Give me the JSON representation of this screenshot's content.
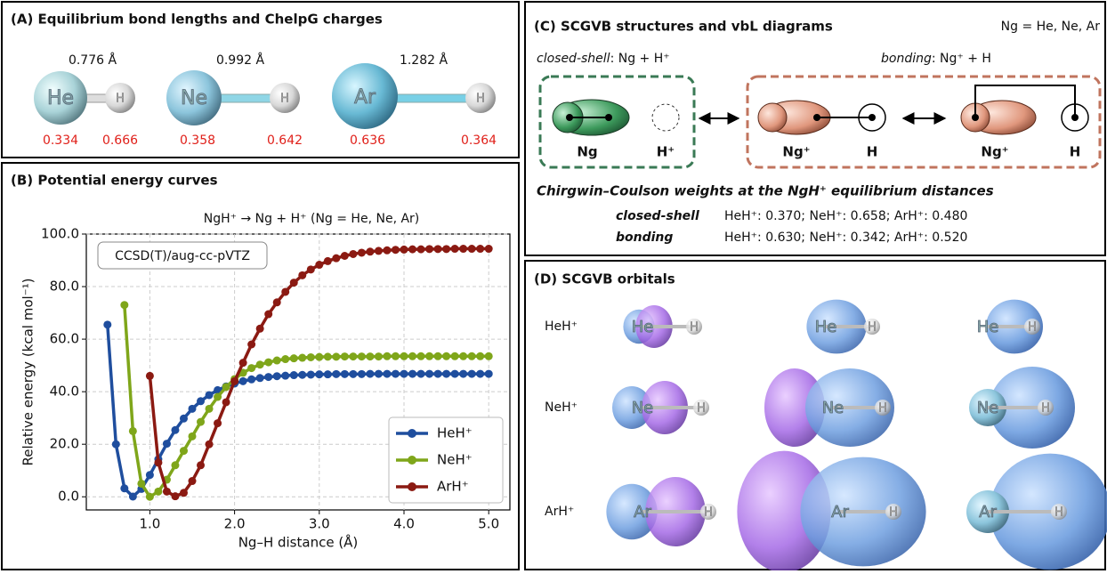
{
  "panel_a": {
    "title": "(A) Equilibrium bond lengths and ChelpG charges",
    "molecules": [
      {
        "atom": "He",
        "h": "H",
        "bond": "0.776 Å",
        "q_ng": "0.334",
        "q_h": "0.666"
      },
      {
        "atom": "Ne",
        "h": "H",
        "bond": "0.992 Å",
        "q_ng": "0.358",
        "q_h": "0.642"
      },
      {
        "atom": "Ar",
        "h": "H",
        "bond": "1.282 Å",
        "q_ng": "0.636",
        "q_h": "0.364"
      }
    ]
  },
  "chart_data": {
    "type": "line",
    "title": "(B) Potential energy curves",
    "subtitle": "NgH⁺ → Ng + H⁺ (Ng = He, Ne, Ar)",
    "annotation": "CCSD(T)/aug-cc-pVTZ",
    "x_label": "Ng–H distance (Å)",
    "y_label": "Relative energy (kcal mol⁻¹)",
    "x": [
      0.5,
      0.6,
      0.7,
      0.8,
      0.9,
      1.0,
      1.1,
      1.2,
      1.3,
      1.4,
      1.5,
      1.6,
      1.7,
      1.8,
      1.9,
      2.0,
      2.1,
      2.2,
      2.3,
      2.4,
      2.5,
      2.6,
      2.7,
      2.8,
      2.9,
      3.0,
      3.1,
      3.2,
      3.3,
      3.4,
      3.5,
      3.6,
      3.7,
      3.8,
      3.9,
      4.0,
      4.1,
      4.2,
      4.3,
      4.4,
      4.5,
      4.6,
      4.7,
      4.8,
      4.9,
      5.0
    ],
    "series": [
      {
        "name": "HeH⁺",
        "color": "#1f4e9e",
        "values": [
          65.5,
          20.0,
          3.2,
          0.1,
          3.0,
          8.3,
          14.3,
          20.2,
          25.4,
          29.8,
          33.5,
          36.4,
          38.7,
          40.6,
          42.0,
          43.1,
          44.0,
          44.7,
          45.2,
          45.6,
          45.9,
          46.1,
          46.3,
          46.4,
          46.5,
          46.6,
          46.6,
          46.7,
          46.7,
          46.7,
          46.7,
          46.8,
          46.8,
          46.8,
          46.8,
          46.8,
          46.8,
          46.8,
          46.8,
          46.8,
          46.8,
          46.8,
          46.8,
          46.8,
          46.8,
          46.8
        ]
      },
      {
        "name": "NeH⁺",
        "color": "#7fa61a",
        "values": [
          null,
          null,
          73.0,
          25.0,
          5.0,
          0.0,
          2.0,
          6.5,
          12.0,
          17.5,
          23.0,
          28.5,
          33.5,
          38.0,
          41.8,
          44.8,
          47.2,
          49.0,
          50.3,
          51.2,
          51.9,
          52.4,
          52.7,
          52.9,
          53.1,
          53.2,
          53.3,
          53.3,
          53.4,
          53.4,
          53.4,
          53.4,
          53.4,
          53.5,
          53.5,
          53.5,
          53.5,
          53.5,
          53.5,
          53.5,
          53.5,
          53.5,
          53.5,
          53.5,
          53.5,
          53.5
        ]
      },
      {
        "name": "ArH⁺",
        "color": "#8b1a12",
        "values": [
          null,
          null,
          null,
          null,
          null,
          46.0,
          13.0,
          2.0,
          0.2,
          1.5,
          6.0,
          12.0,
          20.0,
          28.0,
          36.0,
          44.0,
          51.0,
          58.0,
          64.0,
          69.5,
          74.0,
          78.0,
          81.5,
          84.3,
          86.5,
          88.3,
          89.7,
          90.8,
          91.7,
          92.4,
          92.9,
          93.3,
          93.6,
          93.8,
          94.0,
          94.1,
          94.2,
          94.2,
          94.3,
          94.3,
          94.3,
          94.4,
          94.4,
          94.4,
          94.4,
          94.4
        ]
      }
    ],
    "xlim": [
      0.25,
      5.25
    ],
    "ylim": [
      -5,
      100
    ],
    "xticks": [
      {
        "value": 1,
        "label": "1.0"
      },
      {
        "value": 2,
        "label": "2.0"
      },
      {
        "value": 3,
        "label": "3.0"
      },
      {
        "value": 4,
        "label": "4.0"
      },
      {
        "value": 5,
        "label": "5.0"
      }
    ],
    "yticks": [
      {
        "value": 0,
        "label": "0.0"
      },
      {
        "value": 20,
        "label": "20.0"
      },
      {
        "value": 40,
        "label": "40.0"
      },
      {
        "value": 60,
        "label": "60.0"
      },
      {
        "value": 80,
        "label": "80.0"
      },
      {
        "value": 100,
        "label": "100.0"
      }
    ],
    "grid": true,
    "legend": "lower right"
  },
  "panel_c": {
    "title": "(C) SCGVB structures and vbL diagrams",
    "note": "Ng = He, Ne, Ar",
    "closed_shell": {
      "term": "closed-shell",
      "formula": ": Ng + H⁺",
      "labels": [
        "Ng",
        "H⁺"
      ]
    },
    "bonding": {
      "term": "bonding",
      "formula": ": Ng⁺ + H",
      "labels": [
        "Ng⁺",
        "H",
        "Ng⁺",
        "H"
      ]
    },
    "weights_title": "Chirgwin–Coulson weights at the NgH⁺ equilibrium distances",
    "weights": [
      [
        "closed-shell",
        "HeH⁺: 0.370; NeH⁺: 0.658; ArH⁺: 0.480"
      ],
      [
        "bonding",
        "HeH⁺: 0.630; NeH⁺: 0.342; ArH⁺: 0.520"
      ]
    ]
  },
  "panel_d": {
    "title": "(D) SCGVB orbitals",
    "rows": [
      {
        "label": "HeH⁺",
        "atom": "He",
        "h": "H"
      },
      {
        "label": "NeH⁺",
        "atom": "Ne",
        "h": "H"
      },
      {
        "label": "ArH⁺",
        "atom": "Ar",
        "h": "H"
      }
    ]
  }
}
